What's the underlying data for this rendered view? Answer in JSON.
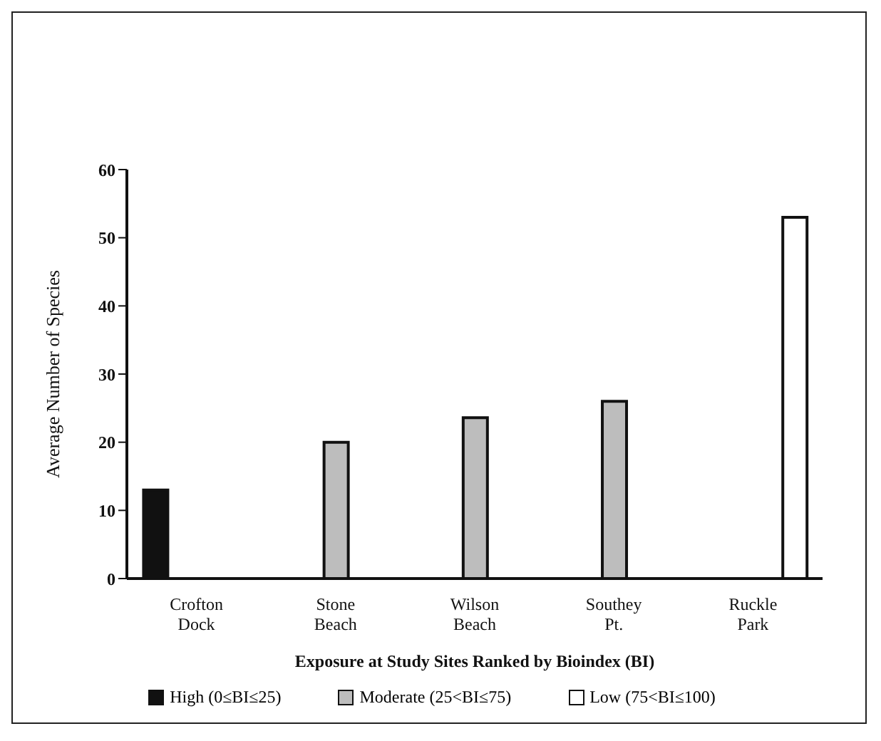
{
  "chart_data": {
    "type": "bar",
    "xlabel": "Exposure at Study Sites Ranked by Bioindex (BI)",
    "ylabel": "Average Number of Species",
    "categories": [
      "Crofton\nDock",
      "Stone\nBeach",
      "Wilson\nBeach",
      "Southey\nPt.",
      "Ruckle\nPark"
    ],
    "series": [
      {
        "name": "High (0≤BI≤25)",
        "color": "#111111",
        "values": [
          13,
          null,
          null,
          null,
          null
        ]
      },
      {
        "name": "Moderate (25<BI≤75)",
        "color": "#bdbdbd",
        "values": [
          null,
          20,
          23.6,
          26,
          null
        ]
      },
      {
        "name": "Low (75<BI≤100)",
        "color": "#ffffff",
        "values": [
          null,
          null,
          null,
          null,
          53
        ]
      }
    ],
    "ylim": [
      0,
      60
    ],
    "yticks": [
      0,
      10,
      20,
      30,
      40,
      50,
      60
    ],
    "grid": false,
    "legend": "bottom"
  }
}
